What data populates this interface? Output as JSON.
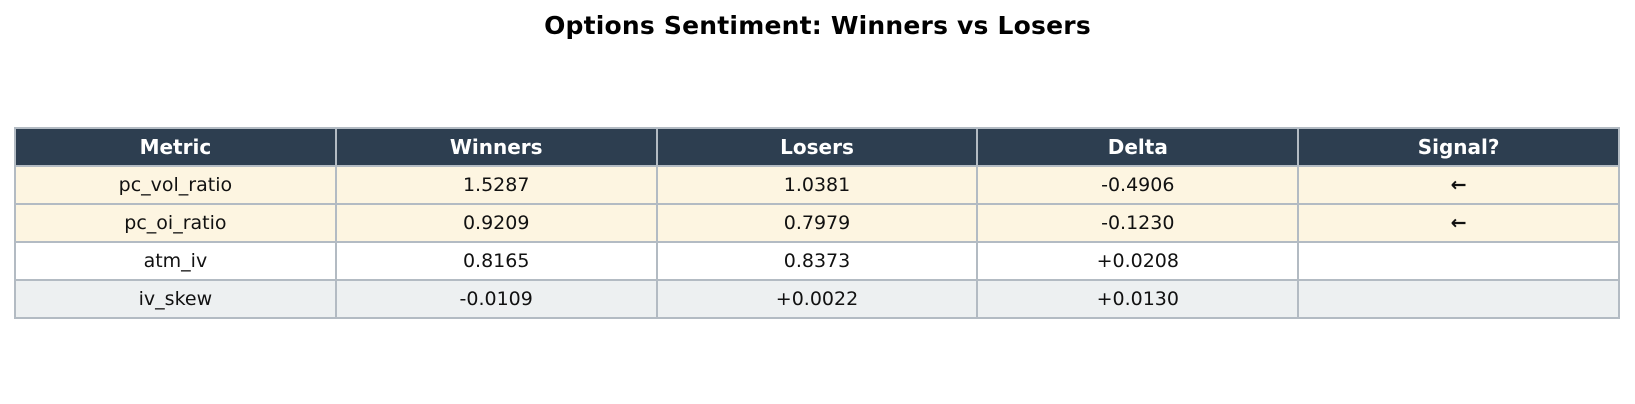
{
  "chart_data": {
    "type": "table",
    "title": "Options Sentiment: Winners vs Losers",
    "columns": [
      "Metric",
      "Winners",
      "Losers",
      "Delta",
      "Signal?"
    ],
    "rows": [
      [
        "pc_vol_ratio",
        "1.5287",
        "1.0381",
        "-0.4906",
        "←"
      ],
      [
        "pc_oi_ratio",
        "0.9209",
        "0.7979",
        "-0.1230",
        "←"
      ],
      [
        "atm_iv",
        "0.8165",
        "0.8373",
        "+0.0208",
        ""
      ],
      [
        "iv_skew",
        "-0.0109",
        "+0.0022",
        "+0.0130",
        ""
      ]
    ],
    "highlighted_rows": [
      0,
      1
    ],
    "legend_position": "none",
    "grid": "table-borders"
  },
  "icons": {
    "signal_arrow": "left-arrow"
  },
  "colors": {
    "title_text": "#000000",
    "header_bg": "#2d3e50",
    "header_text": "#ffffff",
    "highlight_row_bg": "#fdf5e1",
    "even_row_bg": "#ffffff",
    "odd_row_bg": "#edf0f1",
    "border": "#b3bbc3",
    "cell_text": "#111111",
    "signal_arrow": "#e8883c"
  }
}
